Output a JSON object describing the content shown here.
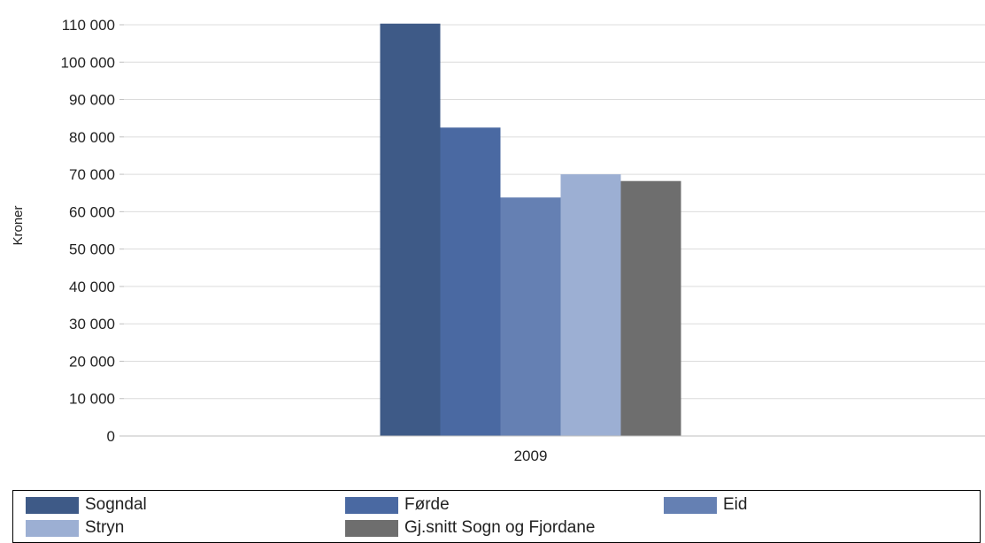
{
  "chart_data": {
    "type": "bar",
    "categories": [
      "2009"
    ],
    "series": [
      {
        "name": "Sogndal",
        "values": [
          110300
        ],
        "color": "#3E5A87"
      },
      {
        "name": "Førde",
        "values": [
          82500
        ],
        "color": "#4A69A2"
      },
      {
        "name": "Eid",
        "values": [
          63800
        ],
        "color": "#6580B3"
      },
      {
        "name": "Stryn",
        "values": [
          70000
        ],
        "color": "#9CAFD3"
      },
      {
        "name": "Gj.snitt Sogn og Fjordane",
        "values": [
          68200
        ],
        "color": "#6E6E6E"
      }
    ],
    "ylabel": "Kroner",
    "ylim": [
      0,
      110000
    ],
    "yticks": [
      0,
      10000,
      20000,
      30000,
      40000,
      50000,
      60000,
      70000,
      80000,
      90000,
      100000,
      110000
    ],
    "ytick_labels": [
      "0",
      "10 000",
      "20 000",
      "30 000",
      "40 000",
      "50 000",
      "60 000",
      "70 000",
      "80 000",
      "90 000",
      "100 000",
      "110 000"
    ],
    "grid": true,
    "legend_position": "bottom"
  }
}
